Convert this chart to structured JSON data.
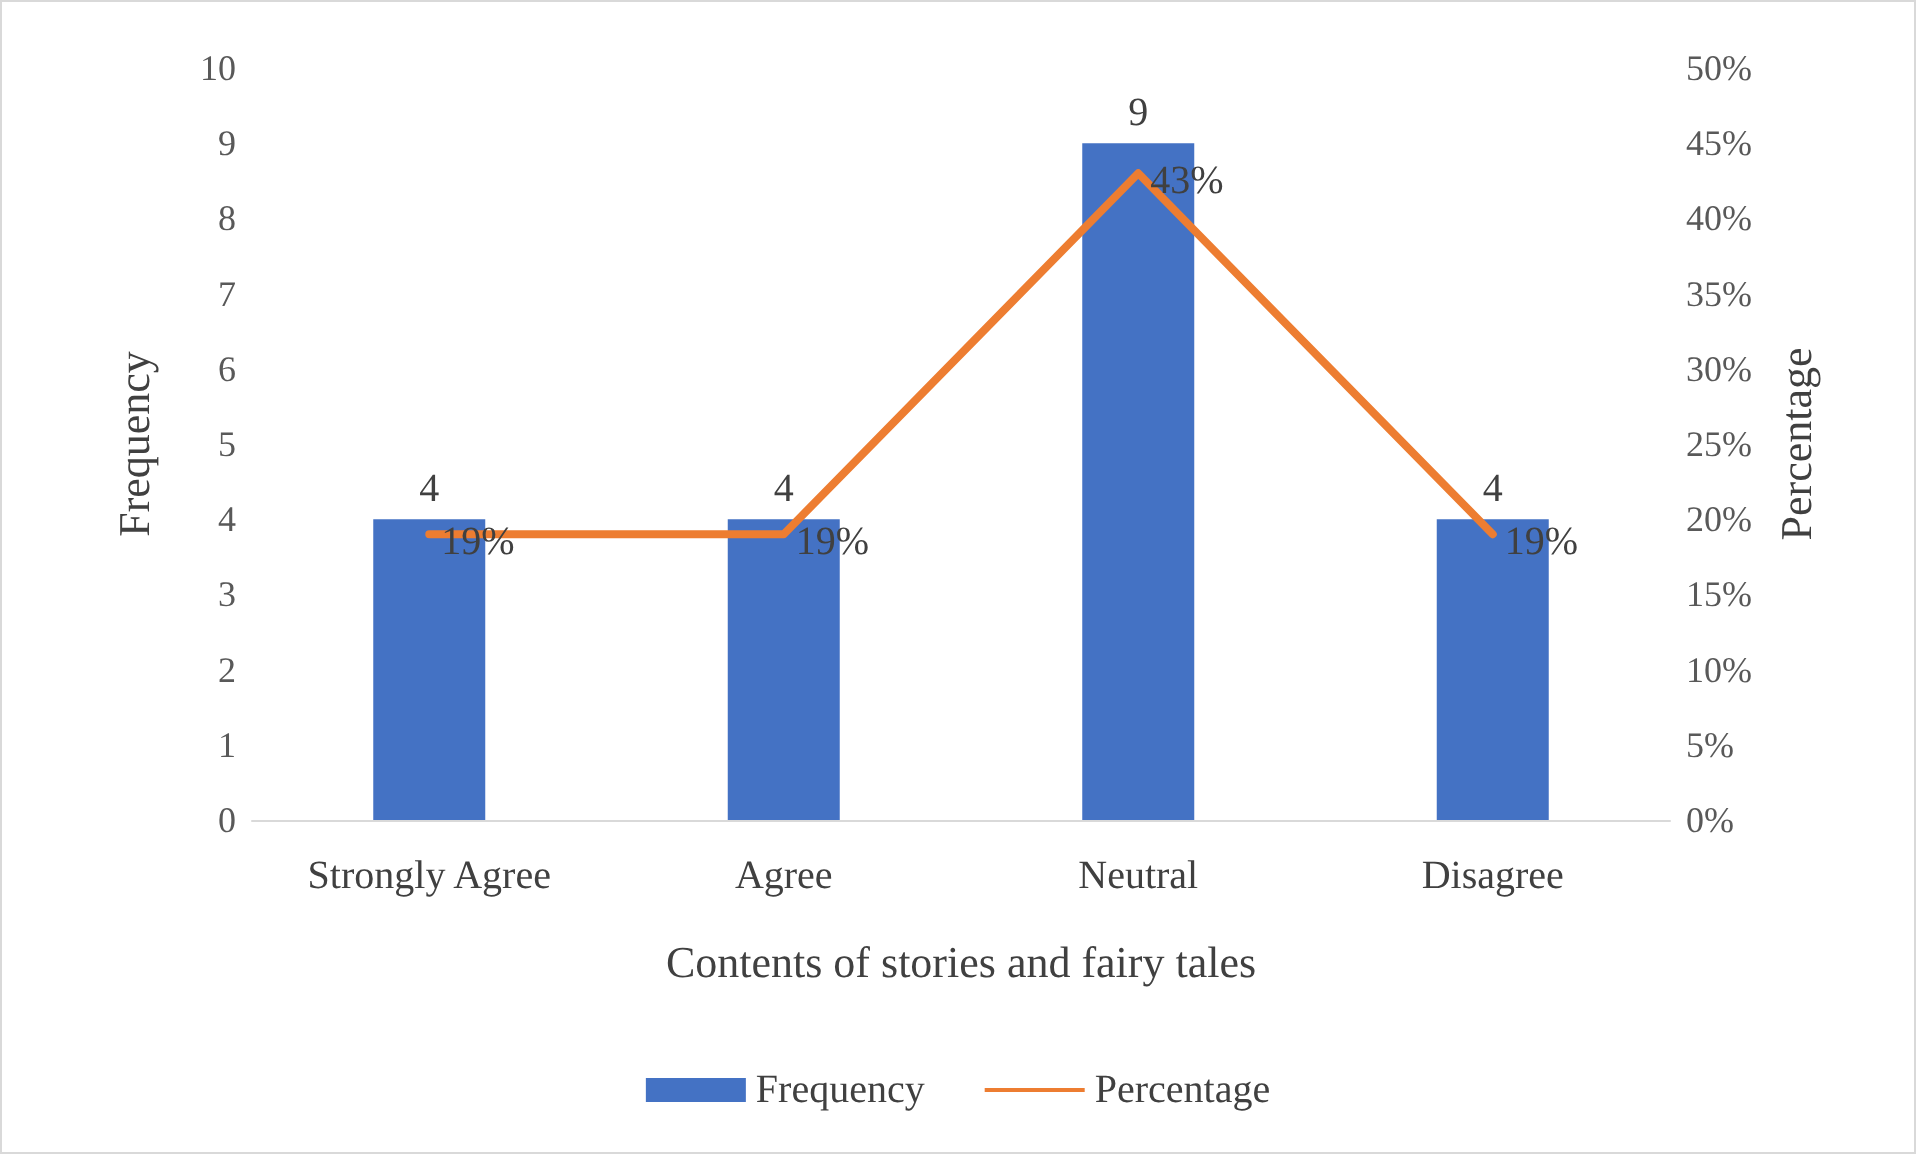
{
  "chart_data": {
    "type": "bar",
    "xlabel": "Contents of stories and fairy tales",
    "ylabel": "Frequency",
    "y2label": "Percentage",
    "categories": [
      "Strongly Agree",
      "Agree",
      "Neutral",
      "Disagree"
    ],
    "series": [
      {
        "name": "Frequency",
        "color": "#4472c4",
        "values": [
          4,
          4,
          9,
          4
        ],
        "value_labels": [
          "4",
          "4",
          "9",
          "4"
        ]
      },
      {
        "name": "Percentage",
        "type": "line",
        "axis": "y2",
        "color": "#ed7d31",
        "values": [
          19,
          19,
          43,
          19
        ],
        "value_labels": [
          "19%",
          "19%",
          "43%",
          "19%"
        ]
      }
    ],
    "ylim": [
      0,
      10
    ],
    "yticks": [
      0,
      1,
      2,
      3,
      4,
      5,
      6,
      7,
      8,
      9,
      10
    ],
    "y2lim": [
      0,
      50
    ],
    "y2ticks": [
      {
        "value": 0,
        "label": "0%"
      },
      {
        "value": 5,
        "label": "5%"
      },
      {
        "value": 10,
        "label": "10%"
      },
      {
        "value": 15,
        "label": "15%"
      },
      {
        "value": 20,
        "label": "20%"
      },
      {
        "value": 25,
        "label": "25%"
      },
      {
        "value": 30,
        "label": "30%"
      },
      {
        "value": 35,
        "label": "35%"
      },
      {
        "value": 40,
        "label": "40%"
      },
      {
        "value": 45,
        "label": "45%"
      },
      {
        "value": 50,
        "label": "50%"
      }
    ],
    "grid": false,
    "legend": "bottom",
    "marker": "none",
    "line_style": "solid"
  }
}
